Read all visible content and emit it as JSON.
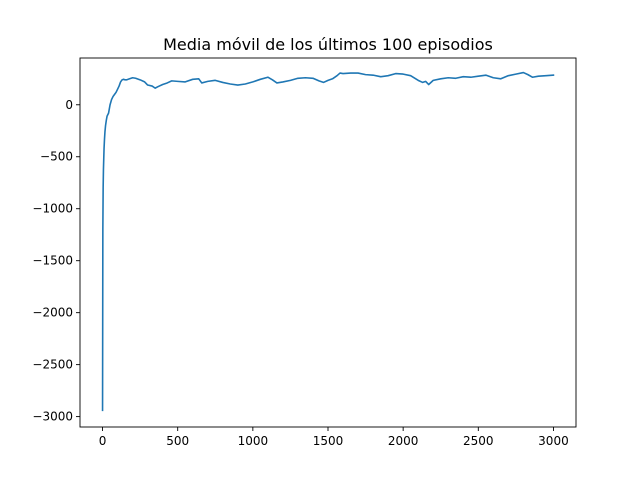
{
  "chart_data": {
    "type": "line",
    "title": "Media móvil de los últimos 100 episodios",
    "xlabel": "",
    "ylabel": "",
    "xlim": [
      -150,
      3150
    ],
    "ylim": [
      -3100,
      450
    ],
    "x_ticks": [
      0,
      500,
      1000,
      1500,
      2000,
      2500,
      3000
    ],
    "x_tick_labels": [
      "0",
      "500",
      "1000",
      "1500",
      "2000",
      "2500",
      "3000"
    ],
    "y_ticks": [
      -3000,
      -2500,
      -2000,
      -1500,
      -1000,
      -500,
      0
    ],
    "y_tick_labels": [
      "−3000",
      "−2500",
      "−2000",
      "−1500",
      "−1000",
      "−500",
      "0"
    ],
    "grid": false,
    "legend": "none",
    "series": [
      {
        "color": "#1f77b4",
        "x": [
          0,
          2,
          4,
          6,
          8,
          10,
          13,
          16,
          20,
          25,
          30,
          40,
          50,
          60,
          70,
          80,
          90,
          100,
          110,
          120,
          130,
          140,
          150,
          160,
          180,
          200,
          220,
          250,
          280,
          300,
          330,
          350,
          370,
          400,
          430,
          460,
          500,
          550,
          600,
          640,
          660,
          700,
          750,
          800,
          850,
          900,
          950,
          1000,
          1050,
          1100,
          1130,
          1160,
          1200,
          1250,
          1300,
          1350,
          1400,
          1440,
          1470,
          1500,
          1530,
          1560,
          1580,
          1600,
          1650,
          1700,
          1750,
          1800,
          1850,
          1900,
          1950,
          2000,
          2050,
          2100,
          2130,
          2150,
          2170,
          2200,
          2250,
          2300,
          2350,
          2400,
          2450,
          2500,
          2550,
          2600,
          2650,
          2700,
          2750,
          2800,
          2830,
          2860,
          2900,
          2950,
          3000
        ],
        "y": [
          -2940,
          -1200,
          -800,
          -620,
          -520,
          -420,
          -330,
          -260,
          -200,
          -150,
          -110,
          -80,
          0,
          50,
          80,
          100,
          120,
          150,
          180,
          220,
          240,
          245,
          240,
          240,
          250,
          260,
          255,
          240,
          220,
          190,
          180,
          160,
          175,
          195,
          210,
          230,
          225,
          220,
          245,
          250,
          210,
          225,
          235,
          215,
          200,
          190,
          200,
          220,
          245,
          265,
          240,
          210,
          220,
          235,
          255,
          260,
          255,
          230,
          215,
          235,
          250,
          280,
          305,
          300,
          305,
          305,
          290,
          285,
          270,
          280,
          300,
          295,
          280,
          235,
          215,
          225,
          195,
          235,
          250,
          260,
          255,
          270,
          265,
          275,
          285,
          260,
          250,
          280,
          295,
          310,
          290,
          265,
          275,
          280,
          285
        ]
      }
    ]
  }
}
